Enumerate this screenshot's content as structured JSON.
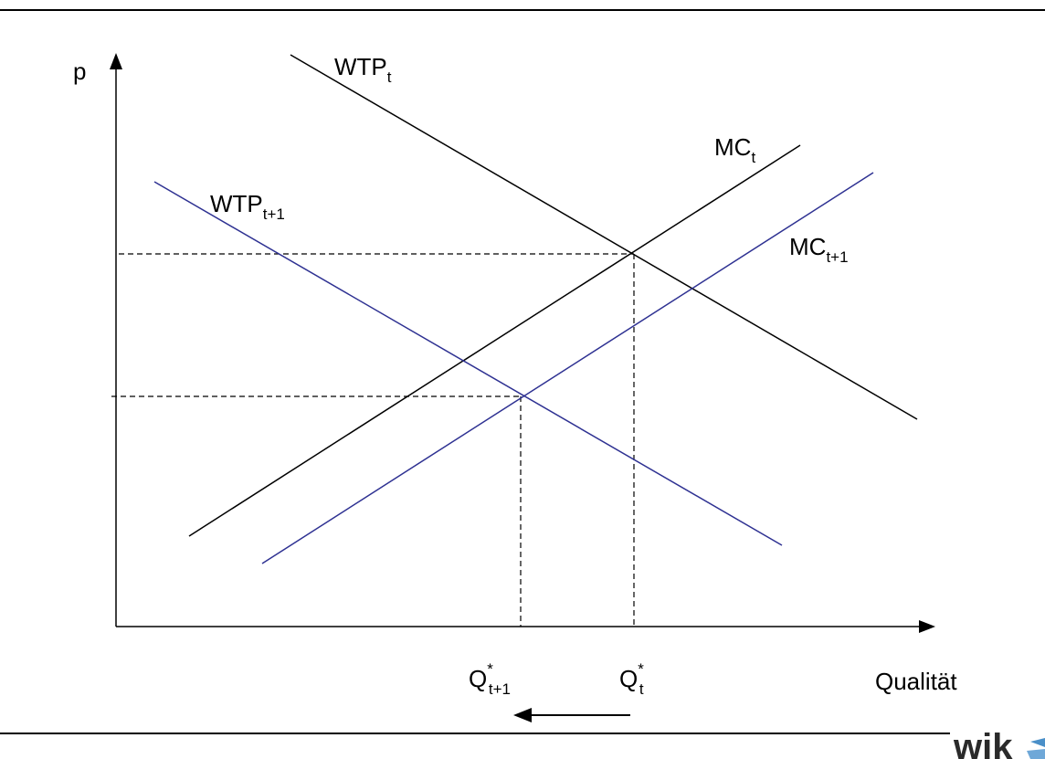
{
  "diagram": {
    "axes": {
      "y_label": "p",
      "x_label": "Qualität"
    },
    "curves": {
      "wtp_t": {
        "base": "WTP",
        "sub": "t",
        "color": "#000000"
      },
      "mc_t": {
        "base": "MC",
        "sub": "t",
        "color": "#000000"
      },
      "wtp_t1": {
        "base": "WTP",
        "sub": "t+1",
        "color": "#2e3192"
      },
      "mc_t1": {
        "base": "MC",
        "sub": "t+1",
        "color": "#2e3192"
      }
    },
    "quantities": {
      "q_t1": {
        "base": "Q",
        "sup": "*",
        "sub": "t+1"
      },
      "q_t": {
        "base": "Q",
        "sup": "*",
        "sub": "t"
      }
    },
    "shift_arrow": "left"
  },
  "logo": {
    "text": "wik",
    "accent_color": "#4a8fc8"
  }
}
